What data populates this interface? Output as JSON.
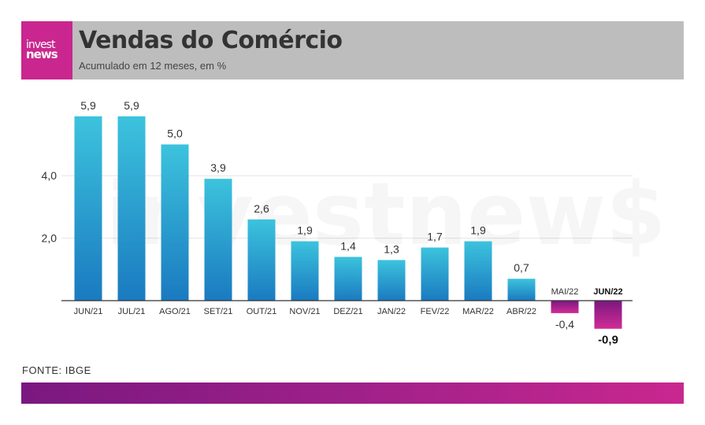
{
  "header": {
    "logo_line1": "invest",
    "logo_line2": "news",
    "title": "Vendas do Comércio",
    "subtitle": "Acumulado em 12 meses, em %"
  },
  "watermark": "investnew$",
  "source": "FONTE: IBGE",
  "colors": {
    "positive_top": "#3cc3dd",
    "positive_bottom": "#1a7ac0",
    "negative_top": "#7a1880",
    "negative_bottom": "#d12b95",
    "logo_bg": "#c9278f",
    "header_bg": "#bdbdbd"
  },
  "chart_data": {
    "type": "bar",
    "categories": [
      "JUN/21",
      "JUL/21",
      "AGO/21",
      "SET/21",
      "OUT/21",
      "NOV/21",
      "DEZ/21",
      "JAN/22",
      "FEV/22",
      "MAR/22",
      "ABR/22",
      "MAI/22",
      "JUN/22"
    ],
    "values": [
      5.9,
      5.9,
      5.0,
      3.9,
      2.6,
      1.9,
      1.4,
      1.3,
      1.7,
      1.9,
      0.7,
      -0.4,
      -0.9
    ],
    "value_labels": [
      "5,9",
      "5,9",
      "5,0",
      "3,9",
      "2,6",
      "1,9",
      "1,4",
      "1,3",
      "1,7",
      "1,9",
      "0,7",
      "-0,4",
      "-0,9"
    ],
    "yticks": [
      2.0,
      4.0
    ],
    "ytick_labels": [
      "2,0",
      "4,0"
    ],
    "ylim": [
      -1.6,
      6.5
    ],
    "grid": true,
    "highlight_category": "JUN/22",
    "title": "Vendas do Comércio",
    "subtitle": "Acumulado em 12 meses, em %"
  }
}
